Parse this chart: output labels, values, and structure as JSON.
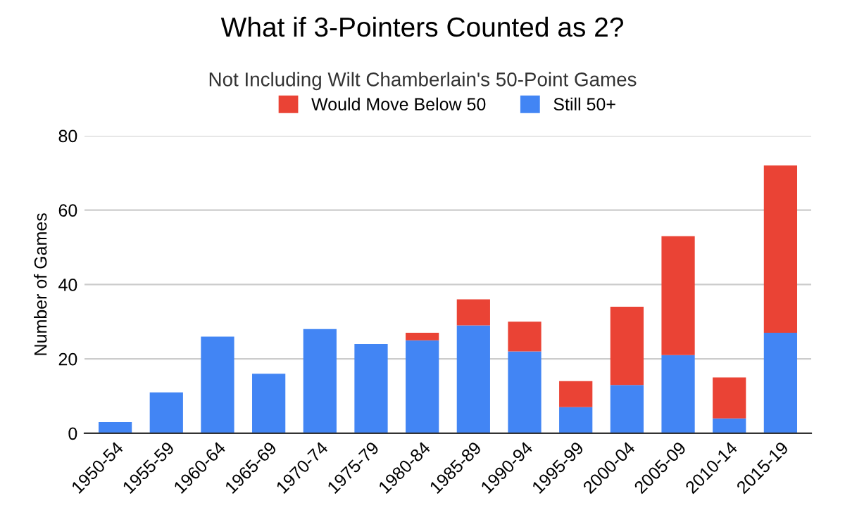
{
  "chart_data": {
    "type": "bar",
    "title": "What if 3-Pointers Counted as 2?",
    "subtitle": "Not Including Wilt Chamberlain's 50-Point Games",
    "ylabel": "Number of Games",
    "categories": [
      "1950-54",
      "1955-59",
      "1960-64",
      "1965-69",
      "1970-74",
      "1975-79",
      "1980-84",
      "1985-89",
      "1990-94",
      "1995-99",
      "2000-04",
      "2005-09",
      "2010-14",
      "2015-19"
    ],
    "series": [
      {
        "name": "Still 50+",
        "color": "#4285f4",
        "values": [
          3,
          11,
          26,
          16,
          28,
          24,
          25,
          29,
          22,
          7,
          13,
          21,
          4,
          27
        ]
      },
      {
        "name": "Would Move Below 50",
        "color": "#ea4335",
        "values": [
          0,
          0,
          0,
          0,
          0,
          0,
          2,
          7,
          8,
          7,
          21,
          32,
          11,
          45
        ]
      }
    ],
    "stacked": true,
    "ylim": [
      0,
      80
    ],
    "yticks": [
      0,
      20,
      40,
      60,
      80
    ],
    "grid": "y",
    "legend": "top"
  }
}
